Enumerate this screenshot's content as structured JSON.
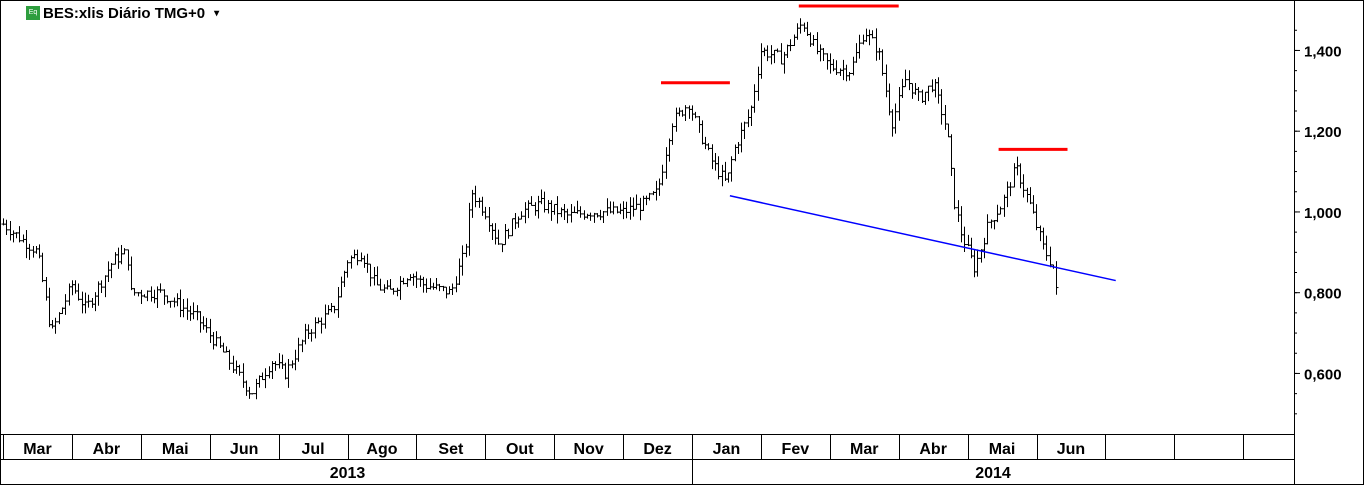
{
  "header": {
    "icon": "eq-icon",
    "icon_label": "Eq",
    "title": "BES:xlis Diário TMG+0",
    "dropdown": "chevron-down-icon",
    "dropdown_glyph": "▾"
  },
  "chart_data": {
    "type": "ohlc",
    "ylim": [
      0.45,
      1.52
    ],
    "yticks": [
      {
        "value": 1.4,
        "label": "1,400"
      },
      {
        "value": 1.2,
        "label": "1,200"
      },
      {
        "value": 1.0,
        "label": "1,000"
      },
      {
        "value": 0.8,
        "label": "0,800"
      },
      {
        "value": 0.6,
        "label": "0,600"
      }
    ],
    "months": [
      "Mar",
      "Abr",
      "Mai",
      "Jun",
      "Jul",
      "Ago",
      "Set",
      "Out",
      "Nov",
      "Dez",
      "Jan",
      "Fev",
      "Mar",
      "Abr",
      "Mai",
      "Jun",
      "",
      "",
      "",
      ""
    ],
    "years": [
      {
        "label": "2013",
        "start_month": 0,
        "end_month": 10
      },
      {
        "label": "2014",
        "start_month": 10,
        "end_month": 20
      }
    ],
    "price_path": [
      [
        0,
        0.97
      ],
      [
        0.5,
        0.9
      ],
      [
        0.7,
        0.7
      ],
      [
        1.0,
        0.82
      ],
      [
        1.2,
        0.76
      ],
      [
        1.6,
        0.88
      ],
      [
        1.8,
        0.9
      ],
      [
        1.85,
        0.8
      ],
      [
        2.3,
        0.8
      ],
      [
        2.8,
        0.74
      ],
      [
        3.2,
        0.65
      ],
      [
        3.6,
        0.55
      ],
      [
        3.9,
        0.63
      ],
      [
        4.1,
        0.6
      ],
      [
        4.4,
        0.7
      ],
      [
        4.8,
        0.76
      ],
      [
        5.0,
        0.88
      ],
      [
        5.2,
        0.9
      ],
      [
        5.4,
        0.82
      ],
      [
        5.6,
        0.8
      ],
      [
        5.9,
        0.85
      ],
      [
        6.1,
        0.82
      ],
      [
        6.5,
        0.8
      ],
      [
        6.7,
        0.9
      ],
      [
        6.8,
        1.05
      ],
      [
        7.0,
        1.0
      ],
      [
        7.2,
        0.92
      ],
      [
        7.5,
        1.0
      ],
      [
        7.8,
        1.02
      ],
      [
        8.2,
        0.99
      ],
      [
        8.5,
        1.0
      ],
      [
        9.0,
        1.0
      ],
      [
        9.3,
        1.02
      ],
      [
        9.5,
        1.05
      ],
      [
        9.7,
        1.22
      ],
      [
        9.95,
        1.27
      ],
      [
        10.1,
        1.2
      ],
      [
        10.3,
        1.12
      ],
      [
        10.5,
        1.07
      ],
      [
        10.6,
        1.15
      ],
      [
        10.85,
        1.25
      ],
      [
        11.0,
        1.4
      ],
      [
        11.3,
        1.38
      ],
      [
        11.6,
        1.47
      ],
      [
        11.8,
        1.4
      ],
      [
        12.0,
        1.36
      ],
      [
        12.3,
        1.35
      ],
      [
        12.5,
        1.45
      ],
      [
        12.7,
        1.4
      ],
      [
        12.9,
        1.22
      ],
      [
        13.1,
        1.33
      ],
      [
        13.3,
        1.28
      ],
      [
        13.5,
        1.32
      ],
      [
        13.7,
        1.2
      ],
      [
        13.8,
        1.03
      ],
      [
        13.9,
        0.95
      ],
      [
        14.1,
        0.86
      ],
      [
        14.3,
        0.97
      ],
      [
        14.5,
        1.02
      ],
      [
        14.7,
        1.11
      ],
      [
        14.9,
        1.02
      ],
      [
        15.1,
        0.91
      ],
      [
        15.25,
        0.86
      ],
      [
        15.3,
        0.78
      ]
    ],
    "annotations": {
      "neckline": {
        "color": "#0000ff",
        "from": [
          10.55,
          1.04
        ],
        "to": [
          16.15,
          0.83
        ]
      },
      "peak_markers": {
        "color": "#ff0000",
        "lines": [
          {
            "from": [
              9.55,
              1.32
            ],
            "to": [
              10.55,
              1.32
            ]
          },
          {
            "from": [
              11.55,
              1.51
            ],
            "to": [
              13.0,
              1.51
            ]
          },
          {
            "from": [
              14.45,
              1.155
            ],
            "to": [
              15.45,
              1.155
            ]
          }
        ]
      }
    }
  }
}
